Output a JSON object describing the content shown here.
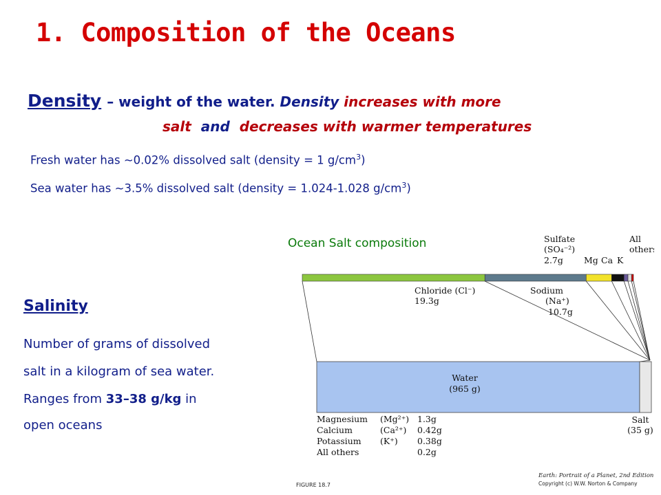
{
  "slide": {
    "title": "1. Composition of the Oceans",
    "density": {
      "term": "Density",
      "dash": "–",
      "definition": " weight of the water. ",
      "phrase1": "Density",
      "phrase2": " increases with more",
      "phrase3": "salt",
      "phrase4": "and",
      "phrase5": "decreases with warmer temperatures"
    },
    "fresh_text": "Fresh water has ~0.02% dissolved salt  (density = 1 g/cm",
    "sea_text": "Sea water has ~3.5% dissolved salt  (density = 1.024-1.028 g/cm",
    "cube": "3",
    "close_paren": ")",
    "salinity": {
      "heading": "Salinity",
      "line1": "Number of grams of dissolved",
      "line2": "salt in a kilogram of sea water.",
      "line3_pre": "Ranges from ",
      "line3_bold": "33–38 g/kg",
      "line3_post": " in",
      "line4": "open oceans"
    }
  },
  "chart_data": {
    "type": "bar",
    "title": "Ocean Salt composition",
    "salt_bar": {
      "total": 35,
      "segments": [
        {
          "name": "Chloride",
          "formula": "(Cl⁻)",
          "value": 19.3,
          "label": "19.3g",
          "color": "#8cc63f"
        },
        {
          "name": "Sodium",
          "formula": "(Na⁺)",
          "value": 10.7,
          "label": "10.7g",
          "color": "#5d7a8c"
        },
        {
          "name": "Sulfate",
          "formula": "(SO₄⁻²)",
          "value": 2.7,
          "label": "2.7g",
          "color": "#f2e22a"
        },
        {
          "name": "Mg",
          "value": 1.3,
          "color": "#111111"
        },
        {
          "name": "Ca",
          "value": 0.42,
          "color": "#6a5a9a"
        },
        {
          "name": "K",
          "value": 0.38,
          "color": "#d9d9d9"
        },
        {
          "name": "All others",
          "value": 0.2,
          "color": "#d40000"
        }
      ]
    },
    "kg_bar": {
      "total": 1000,
      "segments": [
        {
          "name": "Water",
          "value": 965,
          "label": "(965 g)",
          "color": "#a8c4f0"
        },
        {
          "name": "Salt",
          "value": 35,
          "label": "(35 g)",
          "color": "#e8e8e8"
        }
      ]
    },
    "table": [
      {
        "name": "Magnesium",
        "formula": "(Mg²⁺)",
        "value": "1.3g"
      },
      {
        "name": "Calcium",
        "formula": "(Ca²⁺)",
        "value": "0.42g"
      },
      {
        "name": "Potassium",
        "formula": "(K⁺)",
        "value": "0.38g"
      },
      {
        "name": "All others",
        "formula": "",
        "value": "0.2g"
      }
    ],
    "figure_label": "FIGURE 18.7",
    "credit_line1": "Earth: Portrait of a Planet, 2nd Edition",
    "credit_line2": "Copyright (c) W.W. Norton & Company"
  }
}
